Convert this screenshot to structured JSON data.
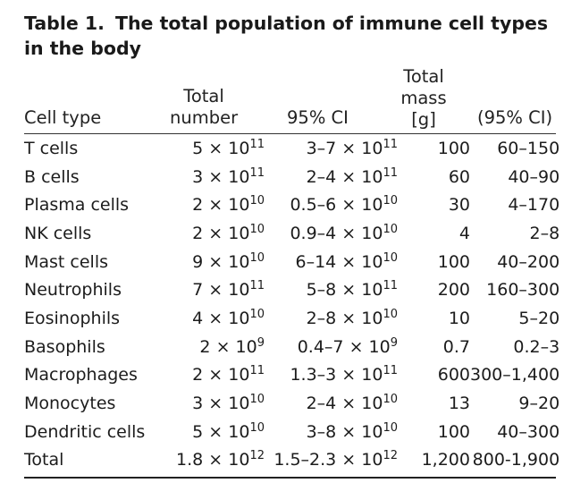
{
  "title": {
    "number": "Table 1.",
    "text": "The total population of immune cell types in the body"
  },
  "headers": {
    "cell_type": "Cell type",
    "total_number": [
      "Total",
      "number"
    ],
    "ci": "95% CI",
    "total_mass": [
      "Total",
      "mass",
      "[g]"
    ],
    "mass_ci": "(95% CI)"
  },
  "rows": [
    {
      "cell_type": "T cells",
      "number": {
        "m": "5",
        "e": "11"
      },
      "ci": {
        "r": "3–7",
        "e": "11"
      },
      "mass": "100",
      "mass_ci": "60–150"
    },
    {
      "cell_type": "B cells",
      "number": {
        "m": "3",
        "e": "11"
      },
      "ci": {
        "r": "2–4",
        "e": "11"
      },
      "mass": "60",
      "mass_ci": "40–90"
    },
    {
      "cell_type": "Plasma cells",
      "number": {
        "m": "2",
        "e": "10"
      },
      "ci": {
        "r": "0.5–6",
        "e": "10"
      },
      "mass": "30",
      "mass_ci": "4–170"
    },
    {
      "cell_type": "NK cells",
      "number": {
        "m": "2",
        "e": "10"
      },
      "ci": {
        "r": "0.9–4",
        "e": "10"
      },
      "mass": "4",
      "mass_ci": "2–8"
    },
    {
      "cell_type": "Mast cells",
      "number": {
        "m": "9",
        "e": "10"
      },
      "ci": {
        "r": "6–14",
        "e": "10"
      },
      "mass": "100",
      "mass_ci": "40–200"
    },
    {
      "cell_type": "Neutrophils",
      "number": {
        "m": "7",
        "e": "11"
      },
      "ci": {
        "r": "5–8",
        "e": "11"
      },
      "mass": "200",
      "mass_ci": "160–300"
    },
    {
      "cell_type": "Eosinophils",
      "number": {
        "m": "4",
        "e": "10"
      },
      "ci": {
        "r": "2–8",
        "e": "10"
      },
      "mass": "10",
      "mass_ci": "5–20"
    },
    {
      "cell_type": "Basophils",
      "number": {
        "m": "2",
        "e": "9"
      },
      "ci": {
        "r": "0.4–7",
        "e": "9"
      },
      "mass": "0.7",
      "mass_ci": "0.2–3"
    },
    {
      "cell_type": "Macrophages",
      "number": {
        "m": "2",
        "e": "11"
      },
      "ci": {
        "r": "1.3–3",
        "e": "11"
      },
      "mass": "600",
      "mass_ci": "300–1,400"
    },
    {
      "cell_type": "Monocytes",
      "number": {
        "m": "3",
        "e": "10"
      },
      "ci": {
        "r": "2–4",
        "e": "10"
      },
      "mass": "13",
      "mass_ci": "9–20"
    },
    {
      "cell_type": "Dendritic cells",
      "number": {
        "m": "5",
        "e": "10"
      },
      "ci": {
        "r": "3–8",
        "e": "10"
      },
      "mass": "100",
      "mass_ci": "40–300"
    },
    {
      "cell_type": "Total",
      "number": {
        "m": "1.8",
        "e": "12"
      },
      "ci": {
        "r": "1.5–2.3",
        "e": "12"
      },
      "mass": "1,200",
      "mass_ci": "800-1,900"
    }
  ],
  "times_symbol": "×",
  "ten": "10"
}
